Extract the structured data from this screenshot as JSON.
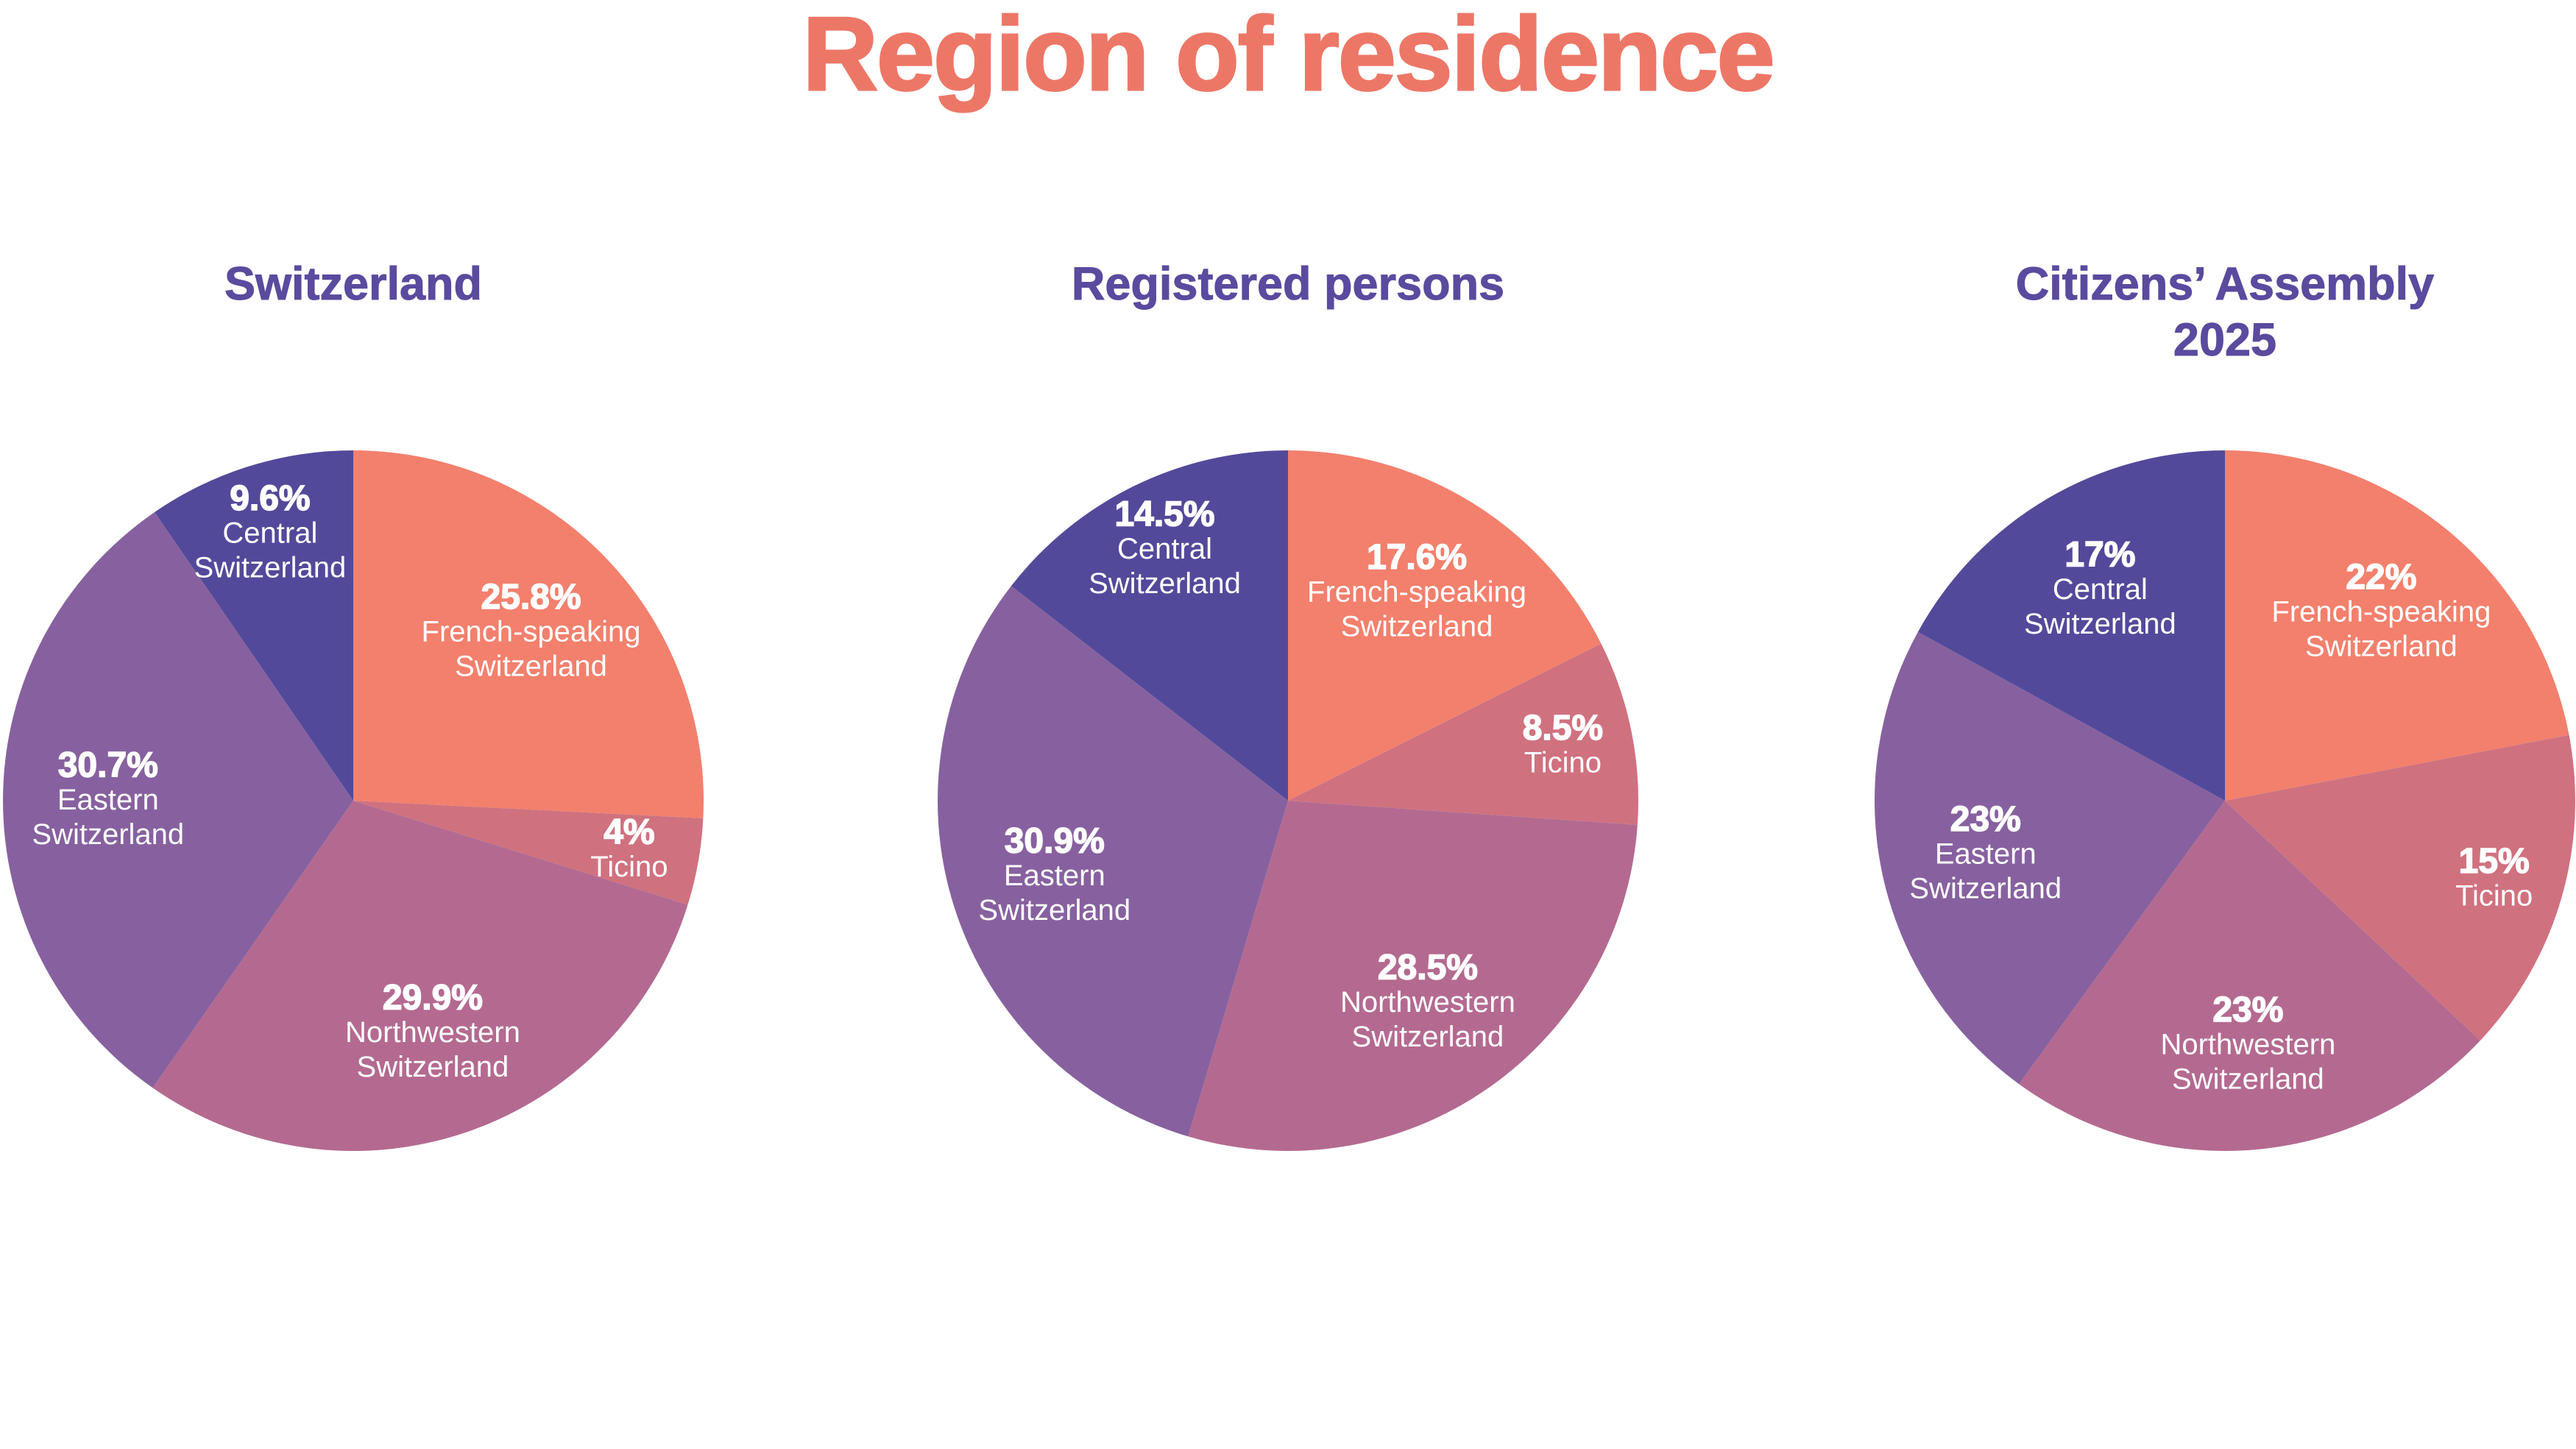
{
  "page": {
    "title": "Region of residence",
    "background_color": "#ffffff",
    "title_color": "#ed7767",
    "heading_color": "#5b4a9e",
    "slice_label_color": "#ffffff"
  },
  "chart_data": [
    {
      "type": "pie",
      "title": "Switzerland",
      "direction": "clockwise",
      "start_angle_deg": 0,
      "legend_position": "none",
      "labels_inside": true,
      "slices": [
        {
          "label": "French-speaking Switzerland",
          "value": 25.8,
          "value_label": "25.8%",
          "color": "#f2806d"
        },
        {
          "label": "Ticino",
          "value": 4,
          "value_label": "4%",
          "color": "#d0717f"
        },
        {
          "label": "Northwestern Switzerland",
          "value": 29.9,
          "value_label": "29.9%",
          "color": "#b46a90"
        },
        {
          "label": "Eastern Switzerland",
          "value": 30.7,
          "value_label": "30.7%",
          "color": "#87619f"
        },
        {
          "label": "Central Switzerland",
          "value": 9.6,
          "value_label": "9.6%",
          "color": "#53499a"
        }
      ]
    },
    {
      "type": "pie",
      "title": "Registered persons",
      "direction": "clockwise",
      "start_angle_deg": 0,
      "legend_position": "none",
      "labels_inside": true,
      "slices": [
        {
          "label": "French-speaking Switzerland",
          "value": 17.6,
          "value_label": "17.6%",
          "color": "#f2806d"
        },
        {
          "label": "Ticino",
          "value": 8.5,
          "value_label": "8.5%",
          "color": "#d0717f"
        },
        {
          "label": "Northwestern Switzerland",
          "value": 28.5,
          "value_label": "28.5%",
          "color": "#b46a90"
        },
        {
          "label": "Eastern Switzerland",
          "value": 30.9,
          "value_label": "30.9%",
          "color": "#87619f"
        },
        {
          "label": "Central Switzerland",
          "value": 14.5,
          "value_label": "14.5%",
          "color": "#53499a"
        }
      ]
    },
    {
      "type": "pie",
      "title": "Citizens’ Assembly 2025",
      "direction": "clockwise",
      "start_angle_deg": 0,
      "legend_position": "none",
      "labels_inside": true,
      "slices": [
        {
          "label": "French-speaking Switzerland",
          "value": 22,
          "value_label": "22%",
          "color": "#f2806d"
        },
        {
          "label": "Ticino",
          "value": 15,
          "value_label": "15%",
          "color": "#d0717f"
        },
        {
          "label": "Northwestern Switzerland",
          "value": 23,
          "value_label": "23%",
          "color": "#b46a90"
        },
        {
          "label": "Eastern Switzerland",
          "value": 23,
          "value_label": "23%",
          "color": "#87619f"
        },
        {
          "label": "Central Switzerland",
          "value": 17,
          "value_label": "17%",
          "color": "#53499a"
        }
      ]
    }
  ]
}
